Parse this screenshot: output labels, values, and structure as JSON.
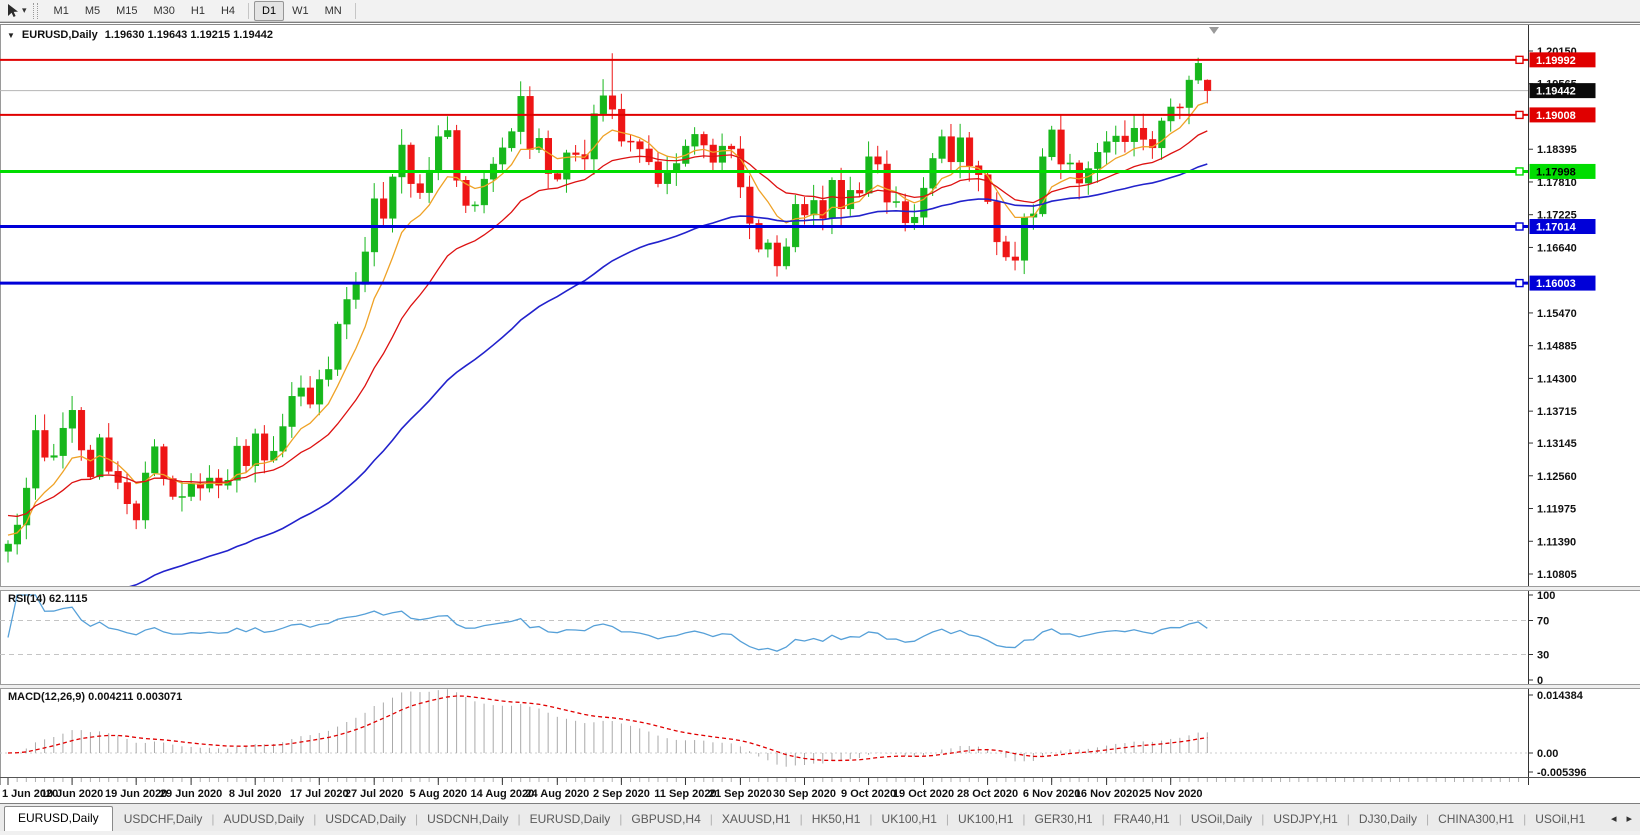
{
  "toolbar": {
    "caret_icon": "▾",
    "timeframes": [
      "M1",
      "M5",
      "M15",
      "M30",
      "H1",
      "H4",
      "D1",
      "W1",
      "MN"
    ],
    "active_timeframe": "D1"
  },
  "chart": {
    "collapse_arrow": "▼",
    "symbol_timeframe": "EURUSD,Daily",
    "ohlc_text": "1.19630 1.19643 1.19215 1.19442"
  },
  "price_axis": {
    "ticks": [
      "1.20150",
      "1.19565",
      "1.18395",
      "1.17810",
      "1.17225",
      "1.16640",
      "1.15470",
      "1.14885",
      "1.14300",
      "1.13715",
      "1.13145",
      "1.12560",
      "1.11975",
      "1.11390",
      "1.10805"
    ],
    "current_price": "1.19442"
  },
  "levels": [
    {
      "value": "1.19992",
      "price": 1.19992,
      "color": "#e00000",
      "text_color": "#ffffff",
      "width": 2
    },
    {
      "value": "1.19008",
      "price": 1.19008,
      "color": "#e00000",
      "text_color": "#ffffff",
      "width": 2
    },
    {
      "value": "1.17998",
      "price": 1.17998,
      "color": "#00dd00",
      "text_color": "#000000",
      "width": 3
    },
    {
      "value": "1.17014",
      "price": 1.17014,
      "color": "#0000d8",
      "text_color": "#ffffff",
      "width": 3
    },
    {
      "value": "1.16003",
      "price": 1.16003,
      "color": "#0000d8",
      "text_color": "#ffffff",
      "width": 3
    }
  ],
  "indicators": {
    "rsi": {
      "label": "RSI(14) 62.1115",
      "period": 14,
      "value": 62.1115,
      "scale": [
        "100",
        "70",
        "30",
        "0"
      ],
      "levels": [
        70,
        30
      ],
      "line_color": "#56a0d8"
    },
    "macd": {
      "label": "MACD(12,26,9) 0.004211 0.003071",
      "fast": 12,
      "slow": 26,
      "signal": 9,
      "macd_value": 0.004211,
      "signal_value": 0.003071,
      "scale_top": "0.014384",
      "scale_zero": "0.00",
      "scale_bottom": "-0.005396",
      "histogram_color": "#aaaaaa",
      "signal_color": "#e00000"
    }
  },
  "chart_data": {
    "type": "candlestick",
    "symbol": "EURUSD",
    "timeframe": "Daily",
    "ylim": [
      1.10805,
      1.2015
    ],
    "up_color": "#17b71c",
    "down_color": "#ee1515",
    "first_open": 1.1121,
    "closes": [
      1.1134,
      1.1168,
      1.1234,
      1.1337,
      1.1289,
      1.1292,
      1.1341,
      1.1373,
      1.1302,
      1.1254,
      1.1324,
      1.1264,
      1.1244,
      1.1206,
      1.1177,
      1.1261,
      1.1308,
      1.1251,
      1.1219,
      1.1219,
      1.1242,
      1.1234,
      1.1252,
      1.1239,
      1.1248,
      1.1309,
      1.1274,
      1.1331,
      1.1284,
      1.13,
      1.1344,
      1.1398,
      1.1413,
      1.1384,
      1.1428,
      1.1446,
      1.1527,
      1.1571,
      1.1598,
      1.1656,
      1.1751,
      1.1716,
      1.179,
      1.1847,
      1.1778,
      1.1762,
      1.1802,
      1.1862,
      1.1873,
      1.1784,
      1.1739,
      1.174,
      1.1786,
      1.1813,
      1.1842,
      1.1871,
      1.1934,
      1.1839,
      1.1859,
      1.1796,
      1.1786,
      1.1833,
      1.183,
      1.1822,
      1.1903,
      1.1935,
      1.1911,
      1.1854,
      1.1853,
      1.184,
      1.1817,
      1.1778,
      1.1801,
      1.1814,
      1.1845,
      1.1866,
      1.1847,
      1.1816,
      1.1845,
      1.184,
      1.1772,
      1.1707,
      1.1661,
      1.1672,
      1.1631,
      1.1665,
      1.1741,
      1.1722,
      1.1748,
      1.1716,
      1.1784,
      1.1733,
      1.1766,
      1.1761,
      1.1826,
      1.1813,
      1.1745,
      1.1746,
      1.1708,
      1.1718,
      1.177,
      1.1823,
      1.1862,
      1.1817,
      1.186,
      1.181,
      1.1794,
      1.1746,
      1.1674,
      1.1647,
      1.1641,
      1.1718,
      1.1724,
      1.1826,
      1.1874,
      1.1813,
      1.1815,
      1.1779,
      1.1805,
      1.1834,
      1.1853,
      1.1863,
      1.1853,
      1.1877,
      1.1857,
      1.1842,
      1.189,
      1.1915,
      1.1914,
      1.1963,
      1.1993,
      1.1944
    ],
    "last_bar": {
      "open": 1.1963,
      "high": 1.19643,
      "low": 1.19215,
      "close": 1.19442
    },
    "wick_overrides": [
      {
        "bar": 0,
        "low": 1.1101
      },
      {
        "bar": 66,
        "high": 1.2011
      },
      {
        "bar": 84,
        "low": 1.1612
      },
      {
        "bar": 110,
        "low": 1.1623
      },
      {
        "bar": 130,
        "high": 1.2003
      }
    ],
    "moving_averages": [
      {
        "name": "fast-ma",
        "period": 8,
        "color": "#efa226",
        "seed": 1.115
      },
      {
        "name": "medium-ma",
        "period": 20,
        "color": "#dd1111",
        "seed": 1.1185
      },
      {
        "name": "slow-ma",
        "period": 50,
        "color": "#2222cc",
        "seed": 1.0905
      }
    ],
    "x_labels": [
      {
        "text": "1 Jun 2020",
        "bar": 0
      },
      {
        "text": "10 Jun 2020",
        "bar": 7
      },
      {
        "text": "19 Jun 2020",
        "bar": 14
      },
      {
        "text": "29 Jun 2020",
        "bar": 20
      },
      {
        "text": "8 Jul 2020",
        "bar": 27
      },
      {
        "text": "17 Jul 2020",
        "bar": 34
      },
      {
        "text": "27 Jul 2020",
        "bar": 40
      },
      {
        "text": "5 Aug 2020",
        "bar": 47
      },
      {
        "text": "14 Aug 2020",
        "bar": 54
      },
      {
        "text": "24 Aug 2020",
        "bar": 60
      },
      {
        "text": "2 Sep 2020",
        "bar": 67
      },
      {
        "text": "11 Sep 2020",
        "bar": 74
      },
      {
        "text": "21 Sep 2020",
        "bar": 80
      },
      {
        "text": "30 Sep 2020",
        "bar": 87
      },
      {
        "text": "9 Oct 2020",
        "bar": 94
      },
      {
        "text": "19 Oct 2020",
        "bar": 100
      },
      {
        "text": "28 Oct 2020",
        "bar": 107
      },
      {
        "text": "6 Nov 2020",
        "bar": 114
      },
      {
        "text": "16 Nov 2020",
        "bar": 120
      },
      {
        "text": "25 Nov 2020",
        "bar": 127
      }
    ]
  },
  "tabs": {
    "divider": "|",
    "scroll_left": "◂",
    "scroll_right": "▸",
    "items": [
      {
        "label": "EURUSD,Daily",
        "active": true
      },
      {
        "label": "USDCHF,Daily",
        "active": false
      },
      {
        "label": "AUDUSD,Daily",
        "active": false
      },
      {
        "label": "USDCAD,Daily",
        "active": false
      },
      {
        "label": "USDCNH,Daily",
        "active": false
      },
      {
        "label": "EURUSD,Daily",
        "active": false
      },
      {
        "label": "GBPUSD,H4",
        "active": false
      },
      {
        "label": "XAUUSD,H1",
        "active": false
      },
      {
        "label": "HK50,H1",
        "active": false
      },
      {
        "label": "UK100,H1",
        "active": false
      },
      {
        "label": "UK100,H1",
        "active": false
      },
      {
        "label": "GER30,H1",
        "active": false
      },
      {
        "label": "FRA40,H1",
        "active": false
      },
      {
        "label": "USOil,Daily",
        "active": false
      },
      {
        "label": "USDJPY,H1",
        "active": false
      },
      {
        "label": "DJ30,Daily",
        "active": false
      },
      {
        "label": "CHINA300,H1",
        "active": false
      },
      {
        "label": "USOil,H1",
        "active": false
      }
    ]
  }
}
